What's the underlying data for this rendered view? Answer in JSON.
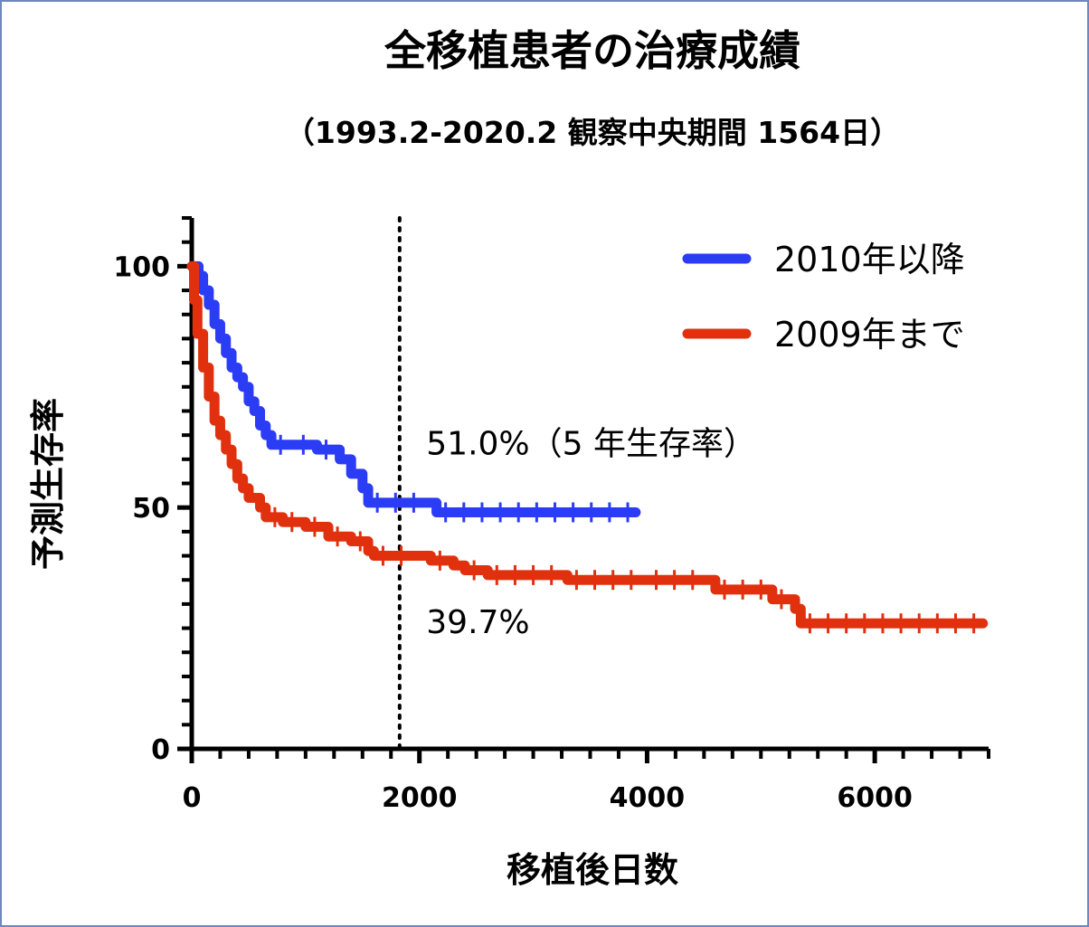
{
  "chart_data": {
    "type": "line",
    "title": "全移植患者の治療成績",
    "subtitle": "（1993.2-2020.2 観察中央期間 1564日）",
    "xlabel": "移植後日数",
    "ylabel": "予測生存率",
    "xlim": [
      0,
      7000
    ],
    "ylim": [
      0,
      110
    ],
    "x_ticks": [
      0,
      2000,
      4000,
      6000
    ],
    "y_ticks": [
      0,
      50,
      100
    ],
    "x_minor_step": 250,
    "y_minor_step": 5,
    "reference_line_x": 1826,
    "legend_position": "top-right",
    "series": [
      {
        "name": "2010年以降",
        "color": "#2b3cf5",
        "step_points": [
          [
            0,
            100
          ],
          [
            60,
            98
          ],
          [
            100,
            95
          ],
          [
            150,
            92
          ],
          [
            200,
            88
          ],
          [
            250,
            85
          ],
          [
            300,
            82
          ],
          [
            350,
            79
          ],
          [
            400,
            77
          ],
          [
            450,
            75
          ],
          [
            500,
            72
          ],
          [
            550,
            70
          ],
          [
            600,
            67
          ],
          [
            650,
            65
          ],
          [
            700,
            63
          ],
          [
            900,
            63
          ],
          [
            1100,
            62
          ],
          [
            1300,
            60
          ],
          [
            1400,
            57
          ],
          [
            1500,
            54
          ],
          [
            1550,
            51
          ],
          [
            2100,
            51
          ],
          [
            2150,
            49
          ],
          [
            3900,
            49
          ]
        ]
      },
      {
        "name": "2009年まで",
        "color": "#e0300e",
        "step_points": [
          [
            0,
            100
          ],
          [
            20,
            93
          ],
          [
            50,
            86
          ],
          [
            100,
            79
          ],
          [
            150,
            73
          ],
          [
            200,
            68
          ],
          [
            250,
            65
          ],
          [
            300,
            62
          ],
          [
            350,
            59
          ],
          [
            400,
            56
          ],
          [
            450,
            54
          ],
          [
            500,
            52
          ],
          [
            600,
            50
          ],
          [
            650,
            48
          ],
          [
            800,
            47
          ],
          [
            1000,
            46
          ],
          [
            1200,
            44
          ],
          [
            1400,
            43
          ],
          [
            1550,
            41
          ],
          [
            1600,
            40
          ],
          [
            2000,
            40
          ],
          [
            2100,
            39
          ],
          [
            2300,
            38
          ],
          [
            2400,
            37
          ],
          [
            2600,
            36
          ],
          [
            3300,
            35
          ],
          [
            4000,
            35
          ],
          [
            4600,
            33
          ],
          [
            5100,
            31
          ],
          [
            5300,
            29
          ],
          [
            5350,
            26
          ],
          [
            6950,
            26
          ]
        ]
      }
    ],
    "annotations": [
      {
        "text": "51.0%（5 年生存率）",
        "x": 2060,
        "y": 61
      },
      {
        "text": "39.7%",
        "x": 2060,
        "y": 24
      }
    ]
  }
}
